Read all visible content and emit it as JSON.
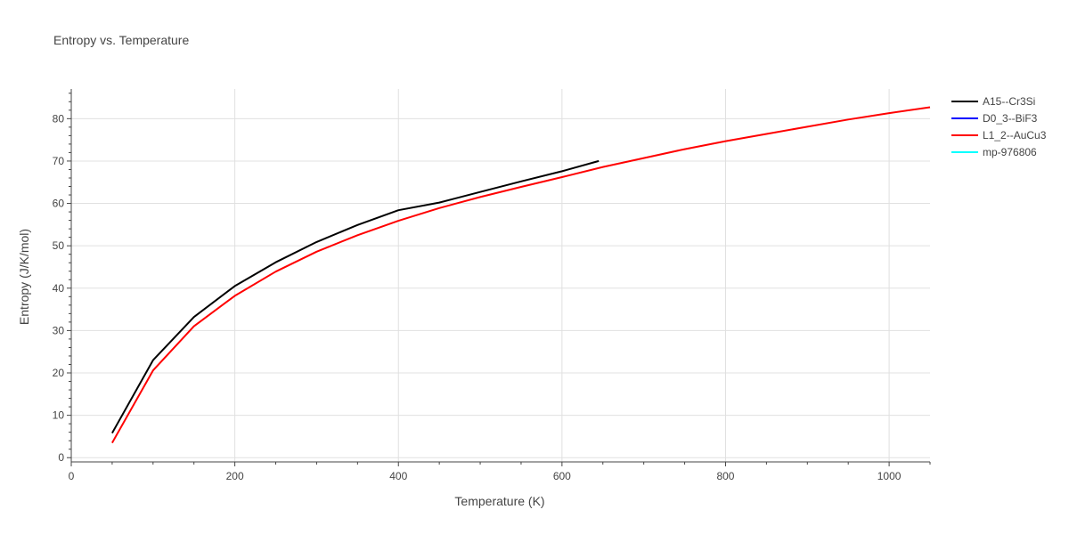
{
  "chart_data": {
    "type": "line",
    "title": "Entropy vs. Temperature",
    "xlabel": "Temperature (K)",
    "ylabel": "Entropy (J/K/mol)",
    "xlim": [
      0,
      1050
    ],
    "ylim": [
      -1,
      87
    ],
    "x_ticks": [
      0,
      200,
      400,
      600,
      800,
      1000
    ],
    "y_ticks": [
      0,
      10,
      20,
      30,
      40,
      50,
      60,
      70,
      80
    ],
    "grid": true,
    "legend_position": "top-right",
    "series": [
      {
        "name": "A15--Cr3Si",
        "color": "#000000",
        "x": [
          50,
          100,
          150,
          200,
          250,
          300,
          350,
          400,
          450,
          500,
          550,
          600,
          645
        ],
        "y": [
          5.8,
          23.0,
          33.2,
          40.5,
          46.1,
          50.9,
          54.9,
          58.4,
          60.2,
          62.7,
          65.2,
          67.6,
          70.0
        ]
      },
      {
        "name": "D0_3--BiF3",
        "color": "#0000ff",
        "x": [],
        "y": []
      },
      {
        "name": "L1_2--AuCu3",
        "color": "#ff0000",
        "x": [
          50,
          100,
          150,
          200,
          250,
          300,
          350,
          400,
          450,
          500,
          550,
          600,
          650,
          700,
          750,
          800,
          850,
          900,
          950,
          1000,
          1050
        ],
        "y": [
          3.5,
          20.6,
          31.0,
          38.2,
          43.9,
          48.6,
          52.5,
          55.9,
          58.9,
          61.5,
          63.9,
          66.2,
          68.6,
          70.7,
          72.8,
          74.7,
          76.4,
          78.1,
          79.8,
          81.3,
          82.7
        ]
      },
      {
        "name": "mp-976806",
        "color": "#00ffff",
        "x": [],
        "y": []
      }
    ]
  }
}
